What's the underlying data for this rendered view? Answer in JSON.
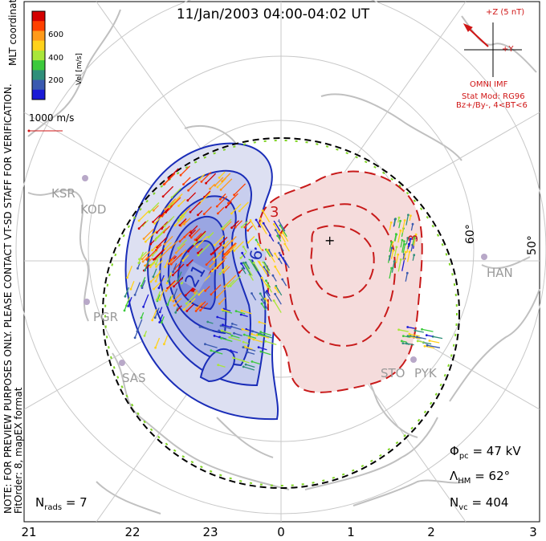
{
  "title": "11/Jan/2003 04:00-04:02 UT",
  "colorbar": {
    "label": "Vel [m/s]",
    "ticks": [
      "600",
      "400",
      "200"
    ],
    "colors": [
      "#d40000",
      "#ff4000",
      "#ff9a1a",
      "#ffd21a",
      "#a9e63a",
      "#3cc93c",
      "#2f8f7a",
      "#3a5ab0",
      "#1a1ad6"
    ]
  },
  "coordinates_label": "MLT coordinates",
  "vector_scale": "1000 m/s",
  "imf": {
    "z_label": "+Z (5 nT)",
    "y_label": "+Y",
    "source": "OMNI IMF",
    "model": "Stat Mod: RG96",
    "condition": "Bz+/By-, 4<BT<6"
  },
  "stats": {
    "phi_pc": "= 47 kV",
    "lambda_hm": "= 62°",
    "n_vc": "= 404",
    "n_rads": "= 7"
  },
  "note": {
    "line1": "NOTE: FOR PREVIEW PURPOSES ONLY. PLEASE CONTACT VT-SD STAFF FOR VERIFICATION.",
    "line2": "FitOrder: 8, mapEX format"
  },
  "latitude_labels": [
    "60°",
    "50°"
  ],
  "contour_labels": [
    "21",
    "6",
    "3",
    "3"
  ],
  "sites": [
    "KSR",
    "KOD",
    "PGR",
    "SAS",
    "STO",
    "PYK",
    "HAN"
  ],
  "mlt_ticks": [
    "21",
    "22",
    "23",
    "0",
    "1",
    "2",
    "3"
  ],
  "colors": {
    "negative": "#1a2db8",
    "positive": "#c81a1a",
    "coast": "#c0c0c0",
    "grid": "#c8c8c8"
  }
}
